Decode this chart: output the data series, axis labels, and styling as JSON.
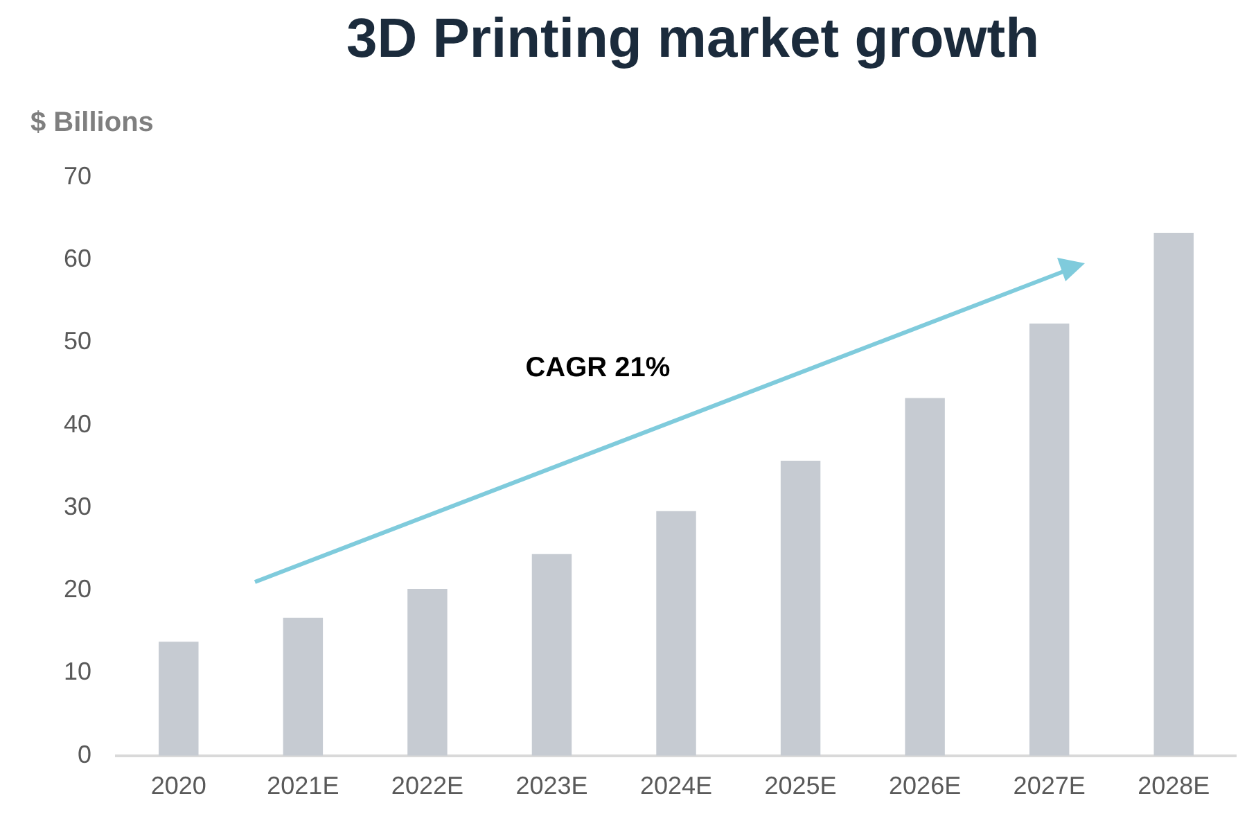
{
  "chart_data": {
    "type": "bar",
    "title": "3D Printing market growth",
    "ylabel": "$ Billions",
    "categories": [
      "2020",
      "2021E",
      "2022E",
      "2023E",
      "2024E",
      "2025E",
      "2026E",
      "2027E",
      "2028E"
    ],
    "values": [
      13.8,
      16.7,
      20.2,
      24.4,
      29.6,
      35.7,
      43.3,
      52.3,
      63.3
    ],
    "color": "#c6cbd2",
    "ylim": [
      0,
      70
    ],
    "yticks": [
      0,
      10,
      20,
      30,
      40,
      50,
      60,
      70
    ],
    "grid": false,
    "legend": false,
    "annotations": [
      "CAGR 21%"
    ]
  }
}
